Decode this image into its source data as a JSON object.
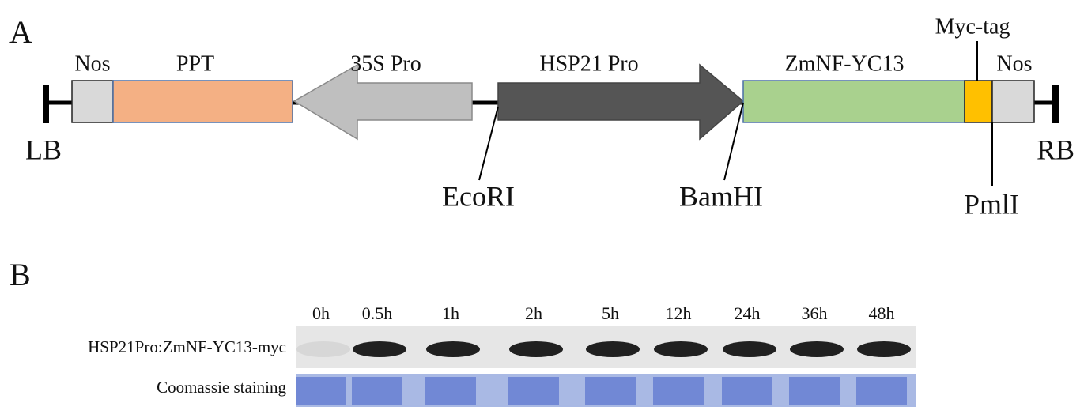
{
  "panel_a": {
    "label": "A",
    "segments": {
      "nos_left": "Nos",
      "ppt": "PPT",
      "promoter_35s": "35S Pro",
      "promoter_hsp21": "HSP21 Pro",
      "gene": "ZmNF-YC13",
      "tag": "Myc-tag",
      "nos_right": "Nos"
    },
    "borders": {
      "left": "LB",
      "right": "RB"
    },
    "sites": [
      "EcoRI",
      "BamHI",
      "PmlI"
    ]
  },
  "panel_b": {
    "label": "B",
    "lanes": [
      "0h",
      "0.5h",
      "1h",
      "2h",
      "5h",
      "12h",
      "24h",
      "36h",
      "48h"
    ],
    "rows": [
      "HSP21Pro:ZmNF-YC13-myc",
      "Coomassie staining"
    ]
  }
}
